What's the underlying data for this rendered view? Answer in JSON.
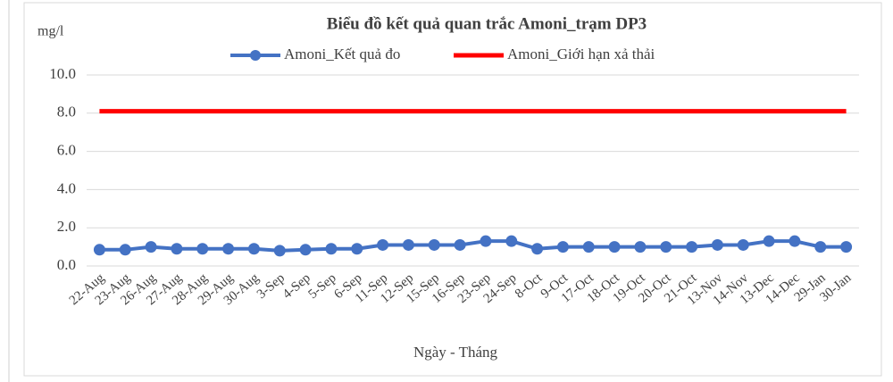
{
  "chart_data": {
    "type": "line",
    "title": "Biểu đồ kết quả quan trắc Amoni_trạm DP3",
    "y_axis_label": "mg/l",
    "x_axis_label": "Ngày - Tháng",
    "categories": [
      "22-Aug",
      "23-Aug",
      "26-Aug",
      "27-Aug",
      "28-Aug",
      "29-Aug",
      "30-Aug",
      "3-Sep",
      "4-Sep",
      "5-Sep",
      "6-Sep",
      "11-Sep",
      "12-Sep",
      "15-Sep",
      "16-Sep",
      "23-Sep",
      "24-Sep",
      "8-Oct",
      "9-Oct",
      "17-Oct",
      "18-Oct",
      "19-Oct",
      "20-Oct",
      "21-Oct",
      "13-Nov",
      "14-Nov",
      "13-Dec",
      "14-Dec",
      "29-Jan",
      "30-Jan"
    ],
    "series": [
      {
        "name": "Amoni_Kết quả đo",
        "color": "#4472c4",
        "markers": true,
        "values": [
          0.85,
          0.85,
          1.0,
          0.9,
          0.9,
          0.9,
          0.9,
          0.8,
          0.85,
          0.9,
          0.9,
          1.1,
          1.1,
          1.1,
          1.1,
          1.3,
          1.3,
          0.9,
          1.0,
          1.0,
          1.0,
          1.0,
          1.0,
          1.0,
          1.1,
          1.1,
          1.3,
          1.3,
          1.0,
          1.0
        ]
      },
      {
        "name": "Amoni_Giới hạn xả thải",
        "color": "#ff0000",
        "markers": false,
        "values": [
          8.1,
          8.1,
          8.1,
          8.1,
          8.1,
          8.1,
          8.1,
          8.1,
          8.1,
          8.1,
          8.1,
          8.1,
          8.1,
          8.1,
          8.1,
          8.1,
          8.1,
          8.1,
          8.1,
          8.1,
          8.1,
          8.1,
          8.1,
          8.1,
          8.1,
          8.1,
          8.1,
          8.1,
          8.1,
          8.1
        ]
      }
    ],
    "ylim": [
      0,
      10
    ],
    "yticks": [
      {
        "value": 0,
        "label": "0.0"
      },
      {
        "value": 2,
        "label": "2.0"
      },
      {
        "value": 4,
        "label": "4.0"
      },
      {
        "value": 6,
        "label": "6.0"
      },
      {
        "value": 8,
        "label": "8.0"
      },
      {
        "value": 10,
        "label": "10.0"
      }
    ],
    "grid": true,
    "legend": "top"
  }
}
